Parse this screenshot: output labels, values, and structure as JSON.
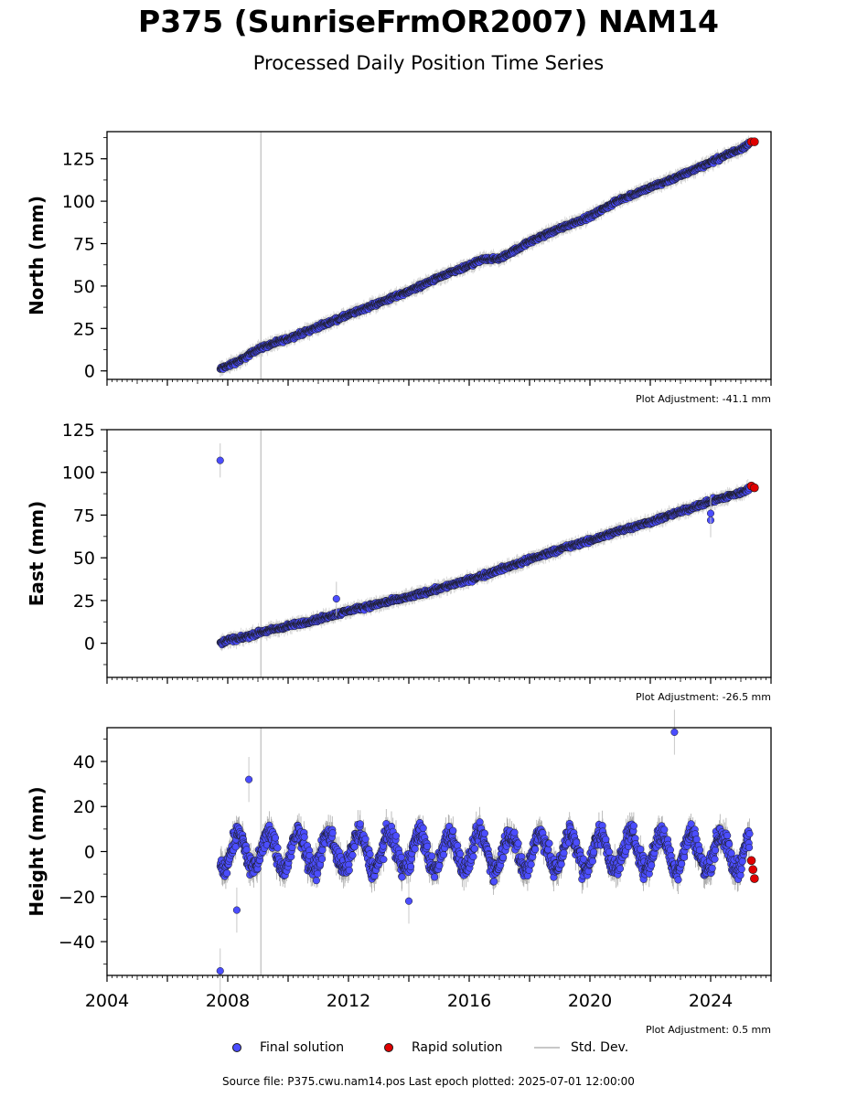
{
  "header": {
    "title": "P375 (SunriseFrmOR2007) NAM14",
    "subtitle": "Processed Daily Position Time Series"
  },
  "colors": {
    "final": "#4b4dff",
    "rapid": "#e00000",
    "stddev": "#c8c8c8",
    "marker_edge": "#1a1a1a"
  },
  "chart_data": [
    {
      "type": "scatter",
      "ylabel": "North (mm)",
      "adjustment": "Plot Adjustment: -41.1 mm",
      "xlim": [
        2004,
        2026
      ],
      "ylim": [
        -5,
        141
      ],
      "yticks": [
        0,
        25,
        50,
        75,
        100,
        125
      ],
      "ytick_labels": [
        "0",
        "25",
        "50",
        "75",
        "100",
        "125"
      ],
      "series": [
        {
          "name": "Final solution",
          "x": [
            2007.75,
            2008.0,
            2008.5,
            2009.0,
            2010.0,
            2011.0,
            2012.0,
            2013.0,
            2014.0,
            2015.0,
            2016.0,
            2016.5,
            2017.0,
            2018.0,
            2019.0,
            2020.0,
            2021.0,
            2022.0,
            2023.0,
            2024.0,
            2025.0,
            2025.3
          ],
          "y": [
            1,
            3,
            7,
            13,
            19,
            26,
            33,
            40,
            47,
            55,
            62,
            66,
            66,
            76,
            84,
            91,
            101,
            108,
            115,
            123,
            131,
            134
          ]
        },
        {
          "name": "Rapid solution",
          "x": [
            2025.35,
            2025.45
          ],
          "y": [
            135,
            135
          ]
        }
      ]
    },
    {
      "type": "scatter",
      "ylabel": "East (mm)",
      "adjustment": "Plot Adjustment: -26.5 mm",
      "xlim": [
        2004,
        2026
      ],
      "ylim": [
        -20,
        125
      ],
      "yticks": [
        0,
        25,
        50,
        75,
        100,
        125
      ],
      "ytick_labels": [
        "0",
        "25",
        "50",
        "75",
        "100",
        "125"
      ],
      "series": [
        {
          "name": "Final solution",
          "x": [
            2007.75,
            2008.0,
            2008.5,
            2009.0,
            2010.0,
            2011.0,
            2012.0,
            2013.0,
            2014.0,
            2015.0,
            2016.0,
            2017.0,
            2018.0,
            2019.0,
            2020.0,
            2021.0,
            2022.0,
            2023.0,
            2024.0,
            2025.0,
            2025.3
          ],
          "y": [
            0,
            2,
            3,
            6,
            10,
            14,
            19,
            23,
            27,
            32,
            37,
            43,
            49,
            55,
            60,
            66,
            71,
            77,
            83,
            88,
            91
          ]
        },
        {
          "name": "Rapid solution",
          "x": [
            2025.35,
            2025.45
          ],
          "y": [
            92,
            91
          ]
        }
      ],
      "outliers": [
        {
          "x": 2007.75,
          "y": 107
        },
        {
          "x": 2011.6,
          "y": 26
        },
        {
          "x": 2024.0,
          "y": 72
        },
        {
          "x": 2024.0,
          "y": 76
        }
      ]
    },
    {
      "type": "scatter",
      "ylabel": "Height (mm)",
      "adjustment": "Plot Adjustment: 0.5 mm",
      "xlim": [
        2004,
        2026
      ],
      "ylim": [
        -55,
        55
      ],
      "yticks": [
        -40,
        -20,
        0,
        20,
        40
      ],
      "ytick_labels": [
        "−40",
        "−20",
        "0",
        "20",
        "40"
      ],
      "xticks": [
        2004,
        2008,
        2012,
        2016,
        2020,
        2024
      ],
      "xtick_labels": [
        "2004",
        "2008",
        "2012",
        "2016",
        "2020",
        "2024"
      ],
      "seasonal_amplitude_mm": 8,
      "series": [
        {
          "name": "Final solution",
          "x_start": 2007.75,
          "x_end": 2025.3,
          "y_mean": 0
        },
        {
          "name": "Rapid solution",
          "x": [
            2025.35,
            2025.4,
            2025.45
          ],
          "y": [
            -4,
            -8,
            -12
          ]
        }
      ],
      "outliers": [
        {
          "x": 2007.75,
          "y": -53
        },
        {
          "x": 2008.7,
          "y": 32
        },
        {
          "x": 2022.8,
          "y": 53
        },
        {
          "x": 2008.3,
          "y": -26
        },
        {
          "x": 2014.0,
          "y": -22
        }
      ]
    }
  ],
  "vertical_line_x": 2009.1,
  "legend": {
    "final_label": "Final solution",
    "rapid_label": "Rapid solution",
    "stddev_label": "Std. Dev."
  },
  "footer": {
    "source": "Source file: P375.cwu.nam14.pos  Last epoch plotted: 2025-07-01 12:00:00"
  }
}
